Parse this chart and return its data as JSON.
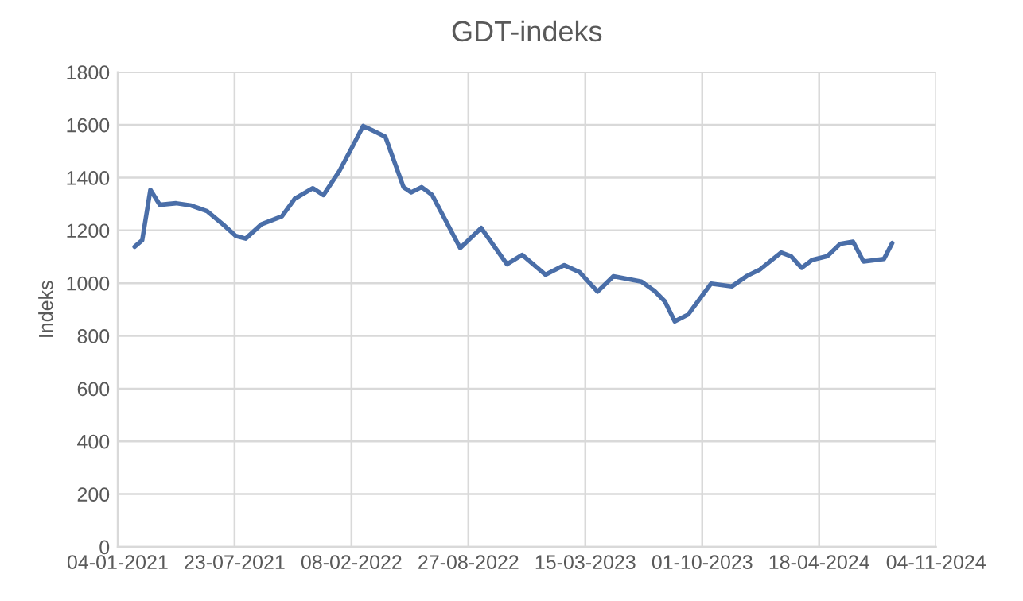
{
  "chart_data": {
    "type": "line",
    "title": "GDT-indeks",
    "ylabel": "Indeks",
    "x": [
      "2021-02-02",
      "2021-02-15",
      "2021-03-01",
      "2021-03-17",
      "2021-04-14",
      "2021-05-10",
      "2021-06-06",
      "2021-07-03",
      "2021-07-25",
      "2021-08-11",
      "2021-09-07",
      "2021-10-12",
      "2021-11-03",
      "2021-12-04",
      "2021-12-22",
      "2022-01-18",
      "2022-02-09",
      "2022-02-28",
      "2022-03-16",
      "2022-04-07",
      "2022-05-08",
      "2022-05-21",
      "2022-06-08",
      "2022-06-26",
      "2022-08-13",
      "2022-09-18",
      "2022-11-01",
      "2022-11-27",
      "2023-01-06",
      "2023-02-07",
      "2023-03-05",
      "2023-04-05",
      "2023-05-02",
      "2023-06-19",
      "2023-07-11",
      "2023-07-29",
      "2023-08-15",
      "2023-09-07",
      "2023-10-16",
      "2023-11-21",
      "2023-12-17",
      "2024-01-08",
      "2024-02-13",
      "2024-03-01",
      "2024-03-19",
      "2024-04-06",
      "2024-05-02",
      "2024-05-24",
      "2024-06-15",
      "2024-07-03",
      "2024-08-07",
      "2024-08-21"
    ],
    "series": [
      {
        "color": "#4a6ea8",
        "values": [
          1138,
          1163,
          1354,
          1297,
          1303,
          1294,
          1273,
          1223,
          1179,
          1169,
          1223,
          1253,
          1320,
          1360,
          1334,
          1424,
          1515,
          1596,
          1579,
          1555,
          1364,
          1344,
          1364,
          1334,
          1133,
          1209,
          1072,
          1107,
          1032,
          1068,
          1042,
          968,
          1026,
          1006,
          971,
          931,
          855,
          881,
          998,
          988,
          1028,
          1052,
          1116,
          1102,
          1058,
          1088,
          1102,
          1149,
          1157,
          1082,
          1092,
          1152
        ]
      }
    ],
    "xlim": [
      "2021-01-04",
      "2024-11-04"
    ],
    "xticks": [
      {
        "value": "2021-01-04",
        "label": "04-01-2021"
      },
      {
        "value": "2021-07-23",
        "label": "23-07-2021"
      },
      {
        "value": "2022-02-08",
        "label": "08-02-2022"
      },
      {
        "value": "2022-08-27",
        "label": "27-08-2022"
      },
      {
        "value": "2023-03-15",
        "label": "15-03-2023"
      },
      {
        "value": "2023-10-01",
        "label": "01-10-2023"
      },
      {
        "value": "2024-04-18",
        "label": "18-04-2024"
      },
      {
        "value": "2024-11-04",
        "label": "04-11-2024"
      }
    ],
    "ylim": [
      0,
      1800
    ],
    "yticks": [
      0,
      200,
      400,
      600,
      800,
      1000,
      1200,
      1400,
      1600,
      1800
    ],
    "grid": true,
    "marker": "none",
    "line_style": "solid"
  }
}
